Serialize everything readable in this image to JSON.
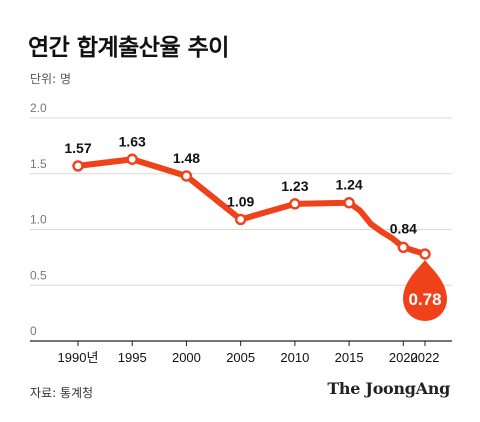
{
  "title": "연간 합계출산율 추이",
  "unit_label": "단위: 명",
  "source_label": "자료: 통계청",
  "brand": "The JoongAng",
  "colors": {
    "line": "#f0421a",
    "grid": "#d9d9d9",
    "axis": "#222222"
  },
  "chart_data": {
    "type": "line",
    "x": [
      1990,
      1995,
      2000,
      2005,
      2010,
      2015,
      2020,
      2022
    ],
    "x_tick_labels": [
      "1990년",
      "1995",
      "2000",
      "2005",
      "2010",
      "2015",
      "2020",
      "2022"
    ],
    "series": [
      {
        "values": [
          1.57,
          1.63,
          1.48,
          1.09,
          1.23,
          1.24,
          0.84,
          0.78
        ]
      }
    ],
    "smoothed_between_points": [
      {
        "x": 2016,
        "y": 1.17
      },
      {
        "x": 2017,
        "y": 1.05
      },
      {
        "x": 2018,
        "y": 0.98
      },
      {
        "x": 2019,
        "y": 0.92
      },
      {
        "x": 2021,
        "y": 0.81
      }
    ],
    "data_labels": [
      "1.57",
      "1.63",
      "1.48",
      "1.09",
      "1.23",
      "1.24",
      "0.84",
      "0.78"
    ],
    "highlight_index": 7,
    "y_tick_values": [
      0,
      0.5,
      1.0,
      1.5,
      2.0
    ],
    "y_tick_labels": [
      "0",
      "0.5",
      "1.0",
      "1.5",
      "2.0"
    ],
    "ylim": [
      0,
      2.0
    ],
    "xlim": [
      1990,
      2022
    ],
    "grid": true
  }
}
